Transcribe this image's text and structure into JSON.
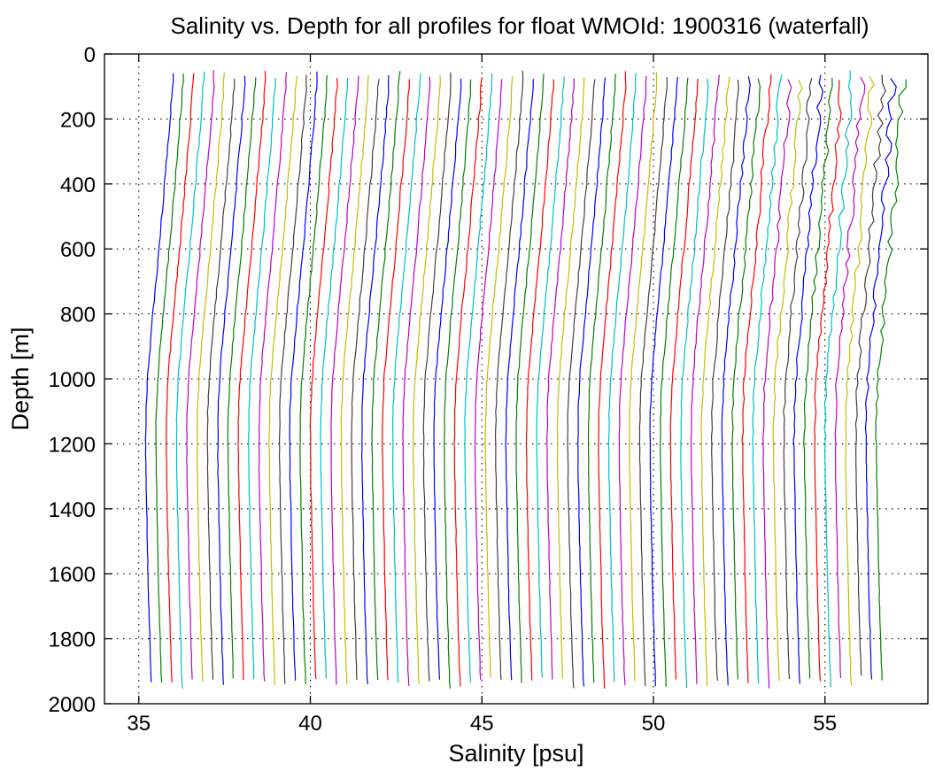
{
  "chart_data": {
    "type": "line",
    "title": "Salinity vs. Depth for all profiles for float WMOId: 1900316 (waterfall)",
    "xlabel": "Salinity [psu]",
    "ylabel": "Depth [m]",
    "xlim": [
      34,
      58
    ],
    "ylim": [
      0,
      2000
    ],
    "y_reversed": true,
    "xticks": [
      35,
      40,
      45,
      50,
      55
    ],
    "yticks": [
      0,
      200,
      400,
      600,
      800,
      1000,
      1200,
      1400,
      1600,
      1800,
      2000
    ],
    "grid": true,
    "color_cycle": [
      "#0000ff",
      "#008000",
      "#ff0000",
      "#00bfbf",
      "#bf00bf",
      "#bfbf00",
      "#404040"
    ],
    "profile_count": 72,
    "first_offset": 35.25,
    "offset_step": 0.3,
    "profile_shape": {
      "depths": [
        50,
        100,
        200,
        300,
        400,
        500,
        600,
        700,
        800,
        900,
        1000,
        1100,
        1200,
        1300,
        1400,
        1500,
        1600,
        1700,
        1800,
        1900,
        1955
      ],
      "salinity_anomaly": [
        0.75,
        0.73,
        0.66,
        0.58,
        0.5,
        0.42,
        0.34,
        0.25,
        0.16,
        0.08,
        0.0,
        -0.04,
        -0.05,
        -0.04,
        -0.02,
        0.0,
        0.02,
        0.04,
        0.07,
        0.1,
        0.12
      ]
    },
    "notes_visible": "Each successive profile is offset in salinity (waterfall); profiles near 52-57 psu show larger upper-ocean variability."
  }
}
